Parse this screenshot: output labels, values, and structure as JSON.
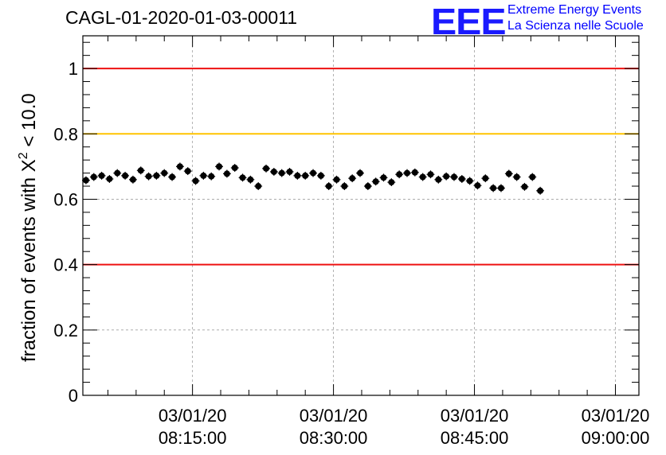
{
  "header": {
    "title": "CAGL-01-2020-01-03-00011",
    "logo_text": "EEE",
    "brand_line1": "Extreme Energy Events",
    "brand_line2": "La Scienza nelle Scuole"
  },
  "chart_data": {
    "type": "scatter",
    "title": "CAGL-01-2020-01-03-00011",
    "xlabel": "",
    "ylabel_prefix": "fraction of events with ",
    "ylabel_symbol": "X",
    "ylabel_sup": "2",
    "ylabel_suffix": " < 10.0",
    "ylim": [
      0,
      1.1
    ],
    "xlim": [
      "2020-01-03 08:03:20",
      "2020-01-03 09:02:30"
    ],
    "y_ticks": [
      0,
      0.2,
      0.4,
      0.6,
      0.8,
      1
    ],
    "y_tick_labels": [
      "0",
      "0.2",
      "0.4",
      "0.6",
      "0.8",
      "1"
    ],
    "x_ticks": [
      {
        "date": "03/01/20",
        "time": "08:15:00",
        "t": "2020-01-03 08:15:00"
      },
      {
        "date": "03/01/20",
        "time": "08:30:00",
        "t": "2020-01-03 08:30:00"
      },
      {
        "date": "03/01/20",
        "time": "08:45:00",
        "t": "2020-01-03 08:45:00"
      },
      {
        "date": "03/01/20",
        "time": "09:00:00",
        "t": "2020-01-03 09:00:00"
      }
    ],
    "grid": true,
    "reference_lines": [
      {
        "y": 1.0,
        "color": "#ee1111"
      },
      {
        "y": 0.8,
        "color": "#ffc400"
      },
      {
        "y": 0.4,
        "color": "#ee1111"
      }
    ],
    "marker_color": "#000000",
    "y_error": 0.012,
    "x_start": "2020-01-03 08:03:40",
    "x_step_seconds": 50,
    "y": [
      0.658,
      0.668,
      0.672,
      0.662,
      0.68,
      0.672,
      0.66,
      0.688,
      0.67,
      0.672,
      0.68,
      0.668,
      0.7,
      0.686,
      0.656,
      0.672,
      0.67,
      0.7,
      0.678,
      0.696,
      0.666,
      0.66,
      0.64,
      0.694,
      0.684,
      0.68,
      0.684,
      0.672,
      0.672,
      0.68,
      0.672,
      0.64,
      0.66,
      0.64,
      0.664,
      0.68,
      0.64,
      0.654,
      0.666,
      0.652,
      0.676,
      0.68,
      0.682,
      0.668,
      0.676,
      0.66,
      0.67,
      0.668,
      0.662,
      0.656,
      0.642,
      0.664,
      0.634,
      0.634,
      0.678,
      0.668,
      0.638,
      0.668,
      0.626
    ]
  }
}
